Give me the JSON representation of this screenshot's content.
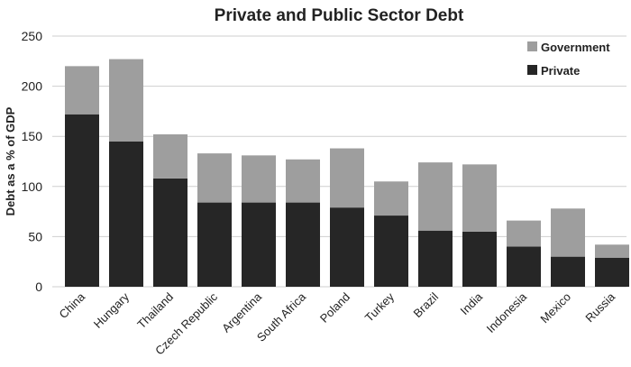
{
  "chart_data": {
    "type": "bar",
    "stacked": true,
    "title": "Private and Public Sector Debt",
    "ylabel": "Debt as a % of GDP",
    "xlabel": "",
    "ylim": [
      0,
      250
    ],
    "yticks": [
      0,
      50,
      100,
      150,
      200,
      250
    ],
    "grid": true,
    "legend_position": "top-right",
    "categories": [
      "China",
      "Hungary",
      "Thailand",
      "Czech Republic",
      "Argentina",
      "South Africa",
      "Poland",
      "Turkey",
      "Brazil",
      "India",
      "Indonesia",
      "Mexico",
      "Russia"
    ],
    "series": [
      {
        "name": "Private",
        "color": "#262626",
        "values": [
          172,
          145,
          108,
          84,
          84,
          84,
          79,
          71,
          56,
          55,
          40,
          30,
          29
        ]
      },
      {
        "name": "Government",
        "color": "#9e9e9e",
        "values": [
          48,
          82,
          44,
          49,
          47,
          43,
          59,
          34,
          68,
          67,
          26,
          48,
          13
        ]
      }
    ]
  }
}
